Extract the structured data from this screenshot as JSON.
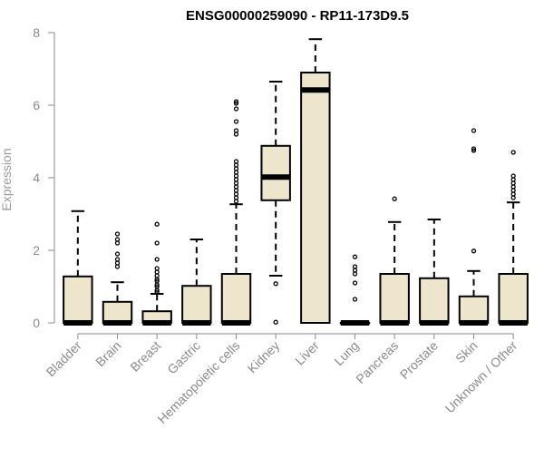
{
  "chart_data": {
    "type": "boxplot",
    "title": "ENSG00000259090 - RP11-173D9.5",
    "xlabel": "",
    "ylabel": "Expression",
    "ylim": [
      0,
      8
    ],
    "yticks": [
      0,
      2,
      4,
      6,
      8
    ],
    "grid": false,
    "box_fill": "#ede6cd",
    "box_stroke": "#000000",
    "axis_color": "#8a8a8a",
    "categories": [
      "Bladder",
      "Brain",
      "Breast",
      "Gastric",
      "Hematopoietic cells",
      "Kidney",
      "Liver",
      "Lung",
      "Pancreas",
      "Prostate",
      "Skin",
      "Unknown / Other"
    ],
    "series": [
      {
        "category": "Bladder",
        "whisker_low": 0,
        "q1": 0,
        "median": 0,
        "q3": 1.28,
        "whisker_high": 3.08,
        "outliers": []
      },
      {
        "category": "Brain",
        "whisker_low": 0,
        "q1": 0,
        "median": 0,
        "q3": 0.58,
        "whisker_high": 1.12,
        "outliers": [
          1.55,
          1.65,
          1.75,
          1.9,
          2.2,
          2.3,
          2.45
        ]
      },
      {
        "category": "Breast",
        "whisker_low": 0,
        "q1": 0,
        "median": 0,
        "q3": 0.32,
        "whisker_high": 0.8,
        "outliers": [
          0.85,
          0.9,
          1.0,
          1.05,
          1.15,
          1.2,
          1.3,
          1.4,
          1.5,
          1.75,
          2.2,
          2.72
        ]
      },
      {
        "category": "Gastric",
        "whisker_low": 0,
        "q1": 0,
        "median": 0,
        "q3": 1.02,
        "whisker_high": 2.3,
        "outliers": []
      },
      {
        "category": "Hematopoietic cells",
        "whisker_low": 0,
        "q1": 0,
        "median": 0,
        "q3": 1.35,
        "whisker_high": 3.27,
        "outliers": [
          3.35,
          3.45,
          3.55,
          3.65,
          3.75,
          3.85,
          3.95,
          4.05,
          4.15,
          4.25,
          4.35,
          4.45,
          5.2,
          5.3,
          5.55,
          5.9,
          6.05,
          6.1
        ]
      },
      {
        "category": "Kidney",
        "whisker_low": 1.3,
        "q1": 3.38,
        "median": 4.02,
        "q3": 4.88,
        "whisker_high": 6.65,
        "outliers": [
          1.08,
          0.02
        ]
      },
      {
        "category": "Liver",
        "whisker_low": 0,
        "q1": 0,
        "median": 6.42,
        "q3": 6.9,
        "whisker_high": 7.82,
        "outliers": []
      },
      {
        "category": "Lung",
        "whisker_low": 0,
        "q1": 0,
        "median": 0,
        "q3": 0,
        "whisker_high": 0,
        "outliers": [
          0.65,
          1.1,
          1.35,
          1.45,
          1.55,
          1.82
        ]
      },
      {
        "category": "Pancreas",
        "whisker_low": 0,
        "q1": 0,
        "median": 0,
        "q3": 1.35,
        "whisker_high": 2.78,
        "outliers": [
          3.42
        ]
      },
      {
        "category": "Prostate",
        "whisker_low": 0,
        "q1": 0,
        "median": 0,
        "q3": 1.23,
        "whisker_high": 2.85,
        "outliers": []
      },
      {
        "category": "Skin",
        "whisker_low": 0,
        "q1": 0,
        "median": 0,
        "q3": 0.73,
        "whisker_high": 1.43,
        "outliers": [
          1.98,
          4.75,
          4.8,
          5.3
        ]
      },
      {
        "category": "Unknown / Other",
        "whisker_low": 0,
        "q1": 0,
        "median": 0,
        "q3": 1.35,
        "whisker_high": 3.32,
        "outliers": [
          3.45,
          3.55,
          3.65,
          3.75,
          3.85,
          3.95,
          4.05,
          4.7
        ]
      }
    ]
  }
}
